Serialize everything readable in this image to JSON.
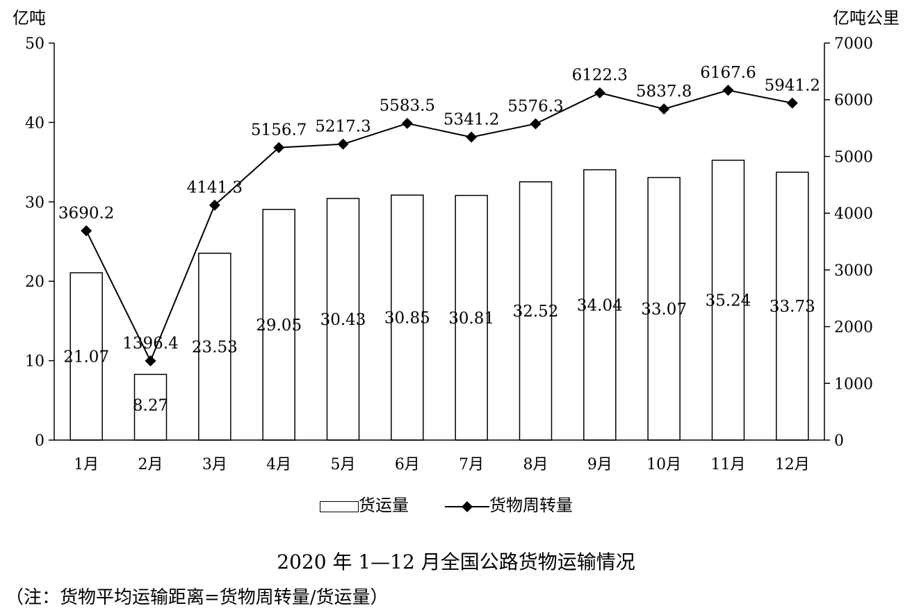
{
  "chart_data": {
    "type": "bar+line",
    "categories": [
      "1月",
      "2月",
      "3月",
      "4月",
      "5月",
      "6月",
      "7月",
      "8月",
      "9月",
      "10月",
      "11月",
      "12月"
    ],
    "series": [
      {
        "name": "货运量",
        "type": "bar",
        "axis": "left",
        "values": [
          21.07,
          8.27,
          23.53,
          29.05,
          30.43,
          30.85,
          30.81,
          32.52,
          34.04,
          33.07,
          35.24,
          33.73
        ],
        "labels": [
          "21.07",
          "8.27",
          "23.53",
          "29.05",
          "30.43",
          "30.85",
          "30.81",
          "32.52",
          "34.04",
          "33.07",
          "35.24",
          "33.73"
        ]
      },
      {
        "name": "货物周转量",
        "type": "line",
        "axis": "right",
        "values": [
          3690.2,
          1396.4,
          4141.3,
          5156.7,
          5217.3,
          5583.5,
          5341.2,
          5576.3,
          6122.3,
          5837.8,
          6167.6,
          5941.2
        ],
        "labels": [
          "3690.2",
          "1396.4",
          "4141.3",
          "5156.7",
          "5217.3",
          "5583.5",
          "5341.2",
          "5576.3",
          "6122.3",
          "5837.8",
          "6167.6",
          "5941.2"
        ]
      }
    ],
    "y_left": {
      "unit": "亿吨",
      "ylim": [
        0,
        50
      ],
      "ticks": [
        "0",
        "10",
        "20",
        "30",
        "40",
        "50"
      ]
    },
    "y_right": {
      "unit": "亿吨公里",
      "ylim": [
        0,
        7000
      ],
      "ticks": [
        "0",
        "1000",
        "2000",
        "3000",
        "4000",
        "5000",
        "6000",
        "7000"
      ]
    },
    "legend": [
      "货运量",
      "货物周转量"
    ],
    "legend_position": "bottom",
    "grid": false,
    "title": "2020 年 1—12 月全国公路货物运输情况",
    "note": "（注：货物平均运输距离=货物周转量/货运量）"
  }
}
